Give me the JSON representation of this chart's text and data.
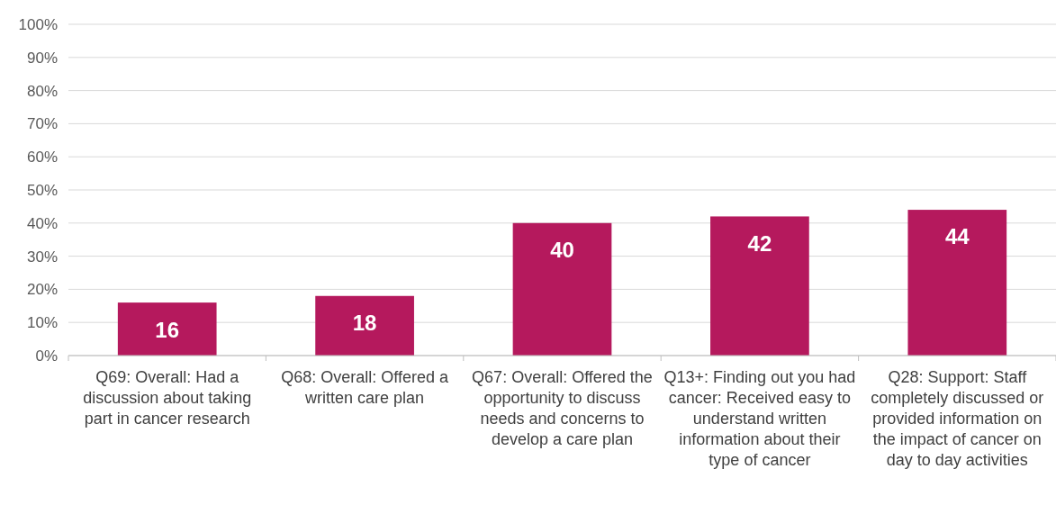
{
  "chart_data": {
    "type": "bar",
    "categories": [
      "Q69: Overall: Had a discussion about taking part in cancer research",
      "Q68: Overall: Offered a written care plan",
      "Q67: Overall: Offered the opportunity to discuss needs and concerns to develop a care plan",
      "Q13+: Finding out you had cancer: Received easy to understand written information about their type of cancer",
      "Q28: Support: Staff completely discussed or provided information on the impact of cancer on day to day activities"
    ],
    "values": [
      16,
      18,
      40,
      42,
      44
    ],
    "color": "#b5195d",
    "ylim": [
      0,
      100
    ],
    "yticks": [
      {
        "value": 0,
        "label": "0%"
      },
      {
        "value": 10,
        "label": "10%"
      },
      {
        "value": 20,
        "label": "20%"
      },
      {
        "value": 30,
        "label": "30%"
      },
      {
        "value": 40,
        "label": "40%"
      },
      {
        "value": 50,
        "label": "50%"
      },
      {
        "value": 60,
        "label": "60%"
      },
      {
        "value": 70,
        "label": "70%"
      },
      {
        "value": 80,
        "label": "80%"
      },
      {
        "value": 90,
        "label": "90%"
      },
      {
        "value": 100,
        "label": "100%"
      }
    ],
    "grid": "y",
    "data_labels": true
  }
}
